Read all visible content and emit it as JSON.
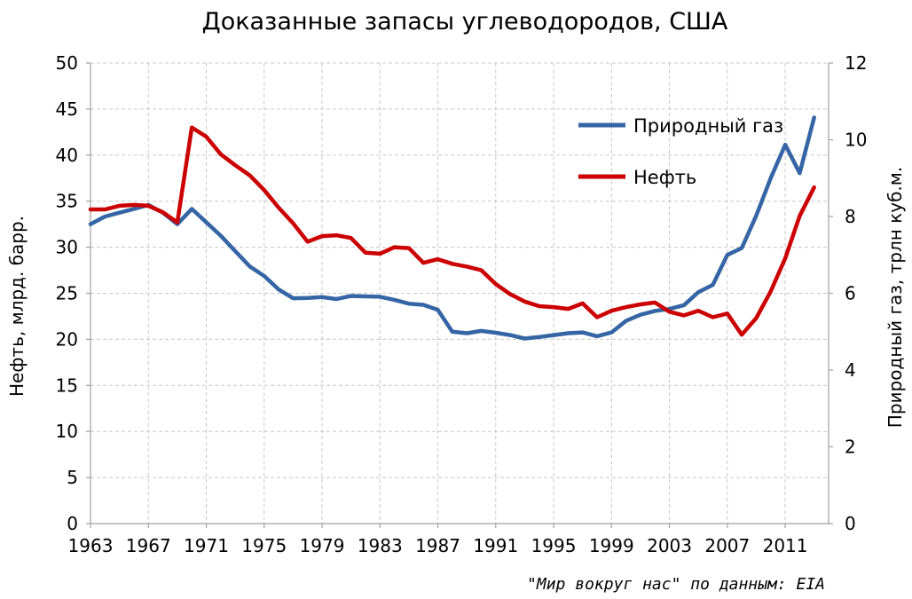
{
  "chart_data": {
    "type": "line",
    "title": "Доказанные запасы углеводородов, США",
    "ylabel_left": "Нефть, млрд. барр.",
    "ylabel_right": "Природный газ, трлн куб.м.",
    "source": "\"Мир вокруг нас\" по данным: EIA",
    "xlim": [
      1963,
      2014
    ],
    "x_ticks": [
      "1963",
      "1967",
      "1971",
      "1975",
      "1979",
      "1983",
      "1987",
      "1991",
      "1995",
      "1999",
      "2003",
      "2007",
      "2011"
    ],
    "ylim_left": [
      0,
      50
    ],
    "y_ticks_left": [
      "0",
      "5",
      "10",
      "15",
      "20",
      "25",
      "30",
      "35",
      "40",
      "45",
      "50"
    ],
    "ylim_right": [
      0,
      12
    ],
    "y_ticks_right": [
      "0",
      "2",
      "4",
      "6",
      "8",
      "10",
      "12"
    ],
    "grid": true,
    "legend_position": "top-right",
    "x": [
      1963,
      1964,
      1965,
      1966,
      1967,
      1968,
      1969,
      1970,
      1971,
      1972,
      1973,
      1974,
      1975,
      1976,
      1977,
      1978,
      1979,
      1980,
      1981,
      1982,
      1983,
      1984,
      1985,
      1986,
      1987,
      1988,
      1989,
      1990,
      1991,
      1992,
      1993,
      1994,
      1995,
      1996,
      1997,
      1998,
      1999,
      2000,
      2001,
      2002,
      2003,
      2004,
      2005,
      2006,
      2007,
      2008,
      2009,
      2010,
      2011,
      2012,
      2013
    ],
    "series": [
      {
        "name": "Природный газ",
        "axis": "right",
        "color": "#3465a4",
        "values": [
          7.8,
          8.0,
          8.1,
          8.2,
          8.3,
          8.1,
          7.8,
          8.2,
          7.85,
          7.5,
          7.1,
          6.7,
          6.45,
          6.1,
          5.87,
          5.88,
          5.9,
          5.85,
          5.93,
          5.92,
          5.91,
          5.83,
          5.73,
          5.7,
          5.57,
          5.0,
          4.96,
          5.02,
          4.97,
          4.91,
          4.82,
          4.86,
          4.91,
          4.96,
          4.98,
          4.88,
          4.98,
          5.28,
          5.44,
          5.54,
          5.59,
          5.69,
          6.03,
          6.22,
          7.0,
          7.18,
          8.02,
          9.0,
          9.87,
          9.13,
          10.58
        ]
      },
      {
        "name": "Нефть",
        "axis": "left",
        "color": "#cc0000",
        "values": [
          34.1,
          34.1,
          34.5,
          34.6,
          34.5,
          33.8,
          32.7,
          43.0,
          42.0,
          40.1,
          38.9,
          37.8,
          36.2,
          34.3,
          32.6,
          30.6,
          31.2,
          31.3,
          31.0,
          29.4,
          29.3,
          30.0,
          29.9,
          28.3,
          28.7,
          28.2,
          27.9,
          27.5,
          26.0,
          24.9,
          24.1,
          23.6,
          23.5,
          23.3,
          23.9,
          22.4,
          23.1,
          23.5,
          23.8,
          24.0,
          23.0,
          22.6,
          23.1,
          22.4,
          22.8,
          20.5,
          22.3,
          25.2,
          28.8,
          33.4,
          36.5
        ]
      }
    ]
  }
}
